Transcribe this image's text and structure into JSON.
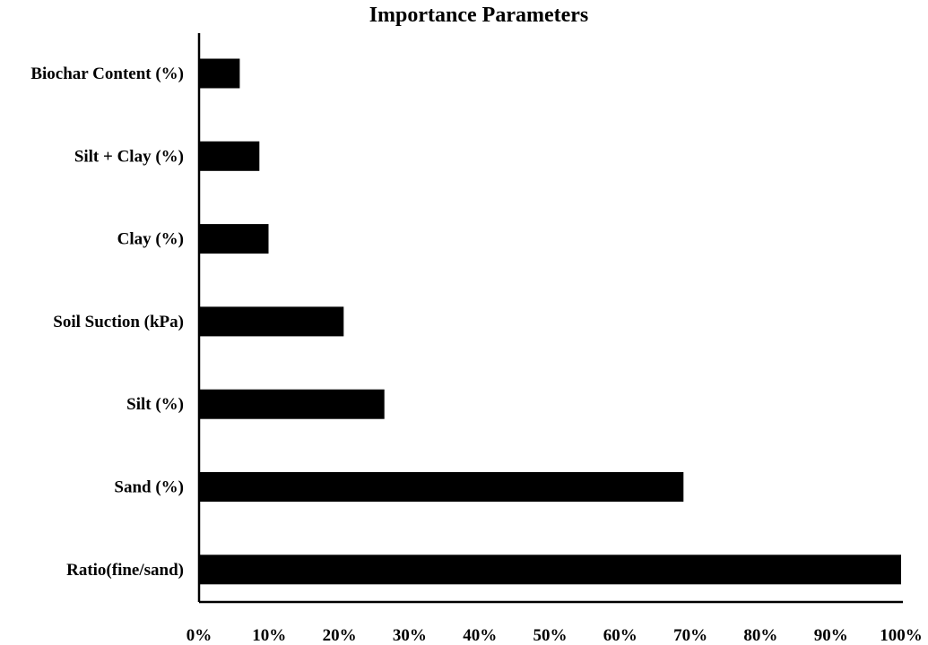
{
  "chart_data": {
    "type": "bar",
    "orientation": "horizontal",
    "title": "Importance Parameters",
    "xlabel": "",
    "ylabel": "",
    "categories": [
      "Biochar Content (%)",
      "Silt + Clay (%)",
      "Clay (%)",
      "Soil Suction (kPa)",
      "Silt (%)",
      "Sand (%)",
      "Ratio(fine/sand)"
    ],
    "values": [
      5.8,
      8.6,
      9.9,
      20.6,
      26.4,
      69.0,
      100.0
    ],
    "xlim": [
      0,
      100
    ],
    "x_ticks": [
      "0%",
      "10%",
      "20%",
      "30%",
      "40%",
      "50%",
      "60%",
      "70%",
      "80%",
      "90%",
      "100%"
    ],
    "x_tick_values": [
      0,
      10,
      20,
      30,
      40,
      50,
      60,
      70,
      80,
      90,
      100
    ],
    "bar_color": "#000000",
    "grid": false,
    "legend": "none"
  }
}
